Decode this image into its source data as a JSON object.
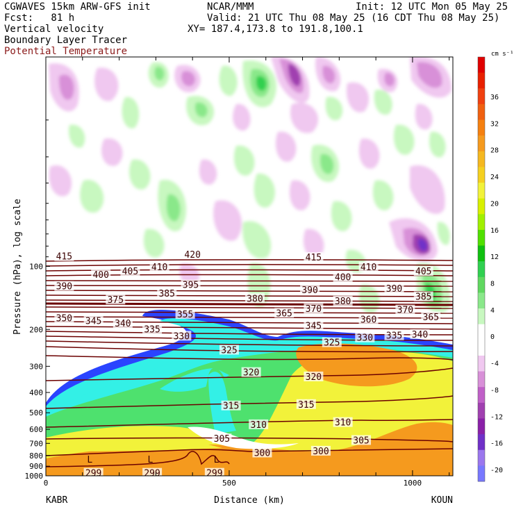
{
  "header": {
    "line1_left": "CGWAVES 15km ARW-GFS init",
    "line1_center": "NCAR/MMM",
    "line1_right": "Init: 12 UTC Mon 05 May 25",
    "line2_left": "Fcst:   81 h",
    "line2_right": "Valid: 21 UTC Thu 08 May 25 (16 CDT Thu 08 May 25)",
    "line3_left": "Vertical velocity",
    "line3_right": "XY= 187.4,173.8 to 191.8,100.1",
    "line4": "Boundary Layer Tracer",
    "line5": "Potential Temperature"
  },
  "colors": {
    "theta_line": "#6b0000",
    "tracer_blue": "#2a44ff",
    "tracer_cyan": "#33f0e6",
    "tracer_green": "#4ee16e",
    "tracer_yellow": "#f2f23a",
    "tracer_orange": "#f59a1e",
    "wpos_light": "#c8f8c0",
    "wpos_mid": "#8ae88a",
    "wpos_dark": "#30d050",
    "wneg_light": "#f0c8f0",
    "wneg_mid": "#d890d8",
    "wneg_dark": "#a040b0"
  },
  "chart_data": {
    "type": "heatmap",
    "title": "Vertical velocity",
    "xlabel": "Distance (km)",
    "ylabel": "Pressure (hPa), log scale",
    "x_ticks": [
      0,
      500,
      1000
    ],
    "xlim": [
      0,
      1110
    ],
    "y_ticks": [
      100,
      200,
      300,
      400,
      500,
      600,
      700,
      800,
      900,
      1000
    ],
    "ylim": [
      1000,
      10
    ],
    "y_scale": "log",
    "left_endpoint": "KABR",
    "right_endpoint": "KOUN",
    "colorbar": {
      "unit": "cm s⁻¹",
      "tick_labels": [
        -20,
        -16,
        -12,
        -8,
        -4,
        0,
        4,
        8,
        12,
        16,
        20,
        24,
        28,
        32,
        36
      ],
      "colors": [
        "#7878ff",
        "#9b77ee",
        "#7030c8",
        "#8a20a8",
        "#a040b0",
        "#c060c8",
        "#d890d8",
        "#f0c8f0",
        "#ffffff",
        "#ffffff",
        "#c8f8c0",
        "#8ae88a",
        "#60d860",
        "#30d050",
        "#10c010",
        "#50e000",
        "#a0f000",
        "#d8f000",
        "#f2f23a",
        "#f5d020",
        "#f5b820",
        "#f59a1e",
        "#f58010",
        "#f06010",
        "#f04010",
        "#e82000",
        "#e00000"
      ]
    },
    "theta_labels": [
      {
        "value": 415,
        "x": 50,
        "p": 90
      },
      {
        "value": 420,
        "x": 400,
        "p": 88
      },
      {
        "value": 415,
        "x": 730,
        "p": 91
      },
      {
        "value": 410,
        "x": 310,
        "p": 101
      },
      {
        "value": 405,
        "x": 230,
        "p": 106
      },
      {
        "value": 400,
        "x": 150,
        "p": 110
      },
      {
        "value": 410,
        "x": 880,
        "p": 101
      },
      {
        "value": 405,
        "x": 1030,
        "p": 106
      },
      {
        "value": 400,
        "x": 810,
        "p": 113
      },
      {
        "value": 395,
        "x": 395,
        "p": 123
      },
      {
        "value": 390,
        "x": 50,
        "p": 125
      },
      {
        "value": 390,
        "x": 720,
        "p": 130
      },
      {
        "value": 390,
        "x": 950,
        "p": 128
      },
      {
        "value": 385,
        "x": 330,
        "p": 135
      },
      {
        "value": 385,
        "x": 1030,
        "p": 140
      },
      {
        "value": 380,
        "x": 570,
        "p": 143
      },
      {
        "value": 380,
        "x": 810,
        "p": 147
      },
      {
        "value": 375,
        "x": 190,
        "p": 145
      },
      {
        "value": 370,
        "x": 730,
        "p": 160
      },
      {
        "value": 370,
        "x": 980,
        "p": 162
      },
      {
        "value": 365,
        "x": 650,
        "p": 168
      },
      {
        "value": 365,
        "x": 1050,
        "p": 175
      },
      {
        "value": 360,
        "x": 880,
        "p": 180
      },
      {
        "value": 355,
        "x": 380,
        "p": 170
      },
      {
        "value": 350,
        "x": 50,
        "p": 177
      },
      {
        "value": 345,
        "x": 130,
        "p": 183
      },
      {
        "value": 345,
        "x": 730,
        "p": 193
      },
      {
        "value": 340,
        "x": 210,
        "p": 188
      },
      {
        "value": 340,
        "x": 1020,
        "p": 212
      },
      {
        "value": 335,
        "x": 290,
        "p": 200
      },
      {
        "value": 335,
        "x": 950,
        "p": 215
      },
      {
        "value": 330,
        "x": 370,
        "p": 216
      },
      {
        "value": 330,
        "x": 870,
        "p": 220
      },
      {
        "value": 325,
        "x": 500,
        "p": 252
      },
      {
        "value": 325,
        "x": 780,
        "p": 232
      },
      {
        "value": 320,
        "x": 560,
        "p": 322
      },
      {
        "value": 320,
        "x": 730,
        "p": 338
      },
      {
        "value": 315,
        "x": 505,
        "p": 465
      },
      {
        "value": 315,
        "x": 710,
        "p": 458
      },
      {
        "value": 310,
        "x": 580,
        "p": 572
      },
      {
        "value": 310,
        "x": 810,
        "p": 558
      },
      {
        "value": 305,
        "x": 480,
        "p": 668
      },
      {
        "value": 305,
        "x": 860,
        "p": 680
      },
      {
        "value": 300,
        "x": 590,
        "p": 780
      },
      {
        "value": 300,
        "x": 750,
        "p": 765
      },
      {
        "value": 299,
        "x": 130,
        "p": 975
      },
      {
        "value": 299,
        "x": 290,
        "p": 975
      },
      {
        "value": 299,
        "x": 460,
        "p": 975
      }
    ],
    "low_markers": [
      {
        "label": "L",
        "x": 120,
        "p": 840
      },
      {
        "label": "L",
        "x": 285,
        "p": 840
      },
      {
        "label": "L",
        "x": 465,
        "p": 840
      }
    ]
  }
}
